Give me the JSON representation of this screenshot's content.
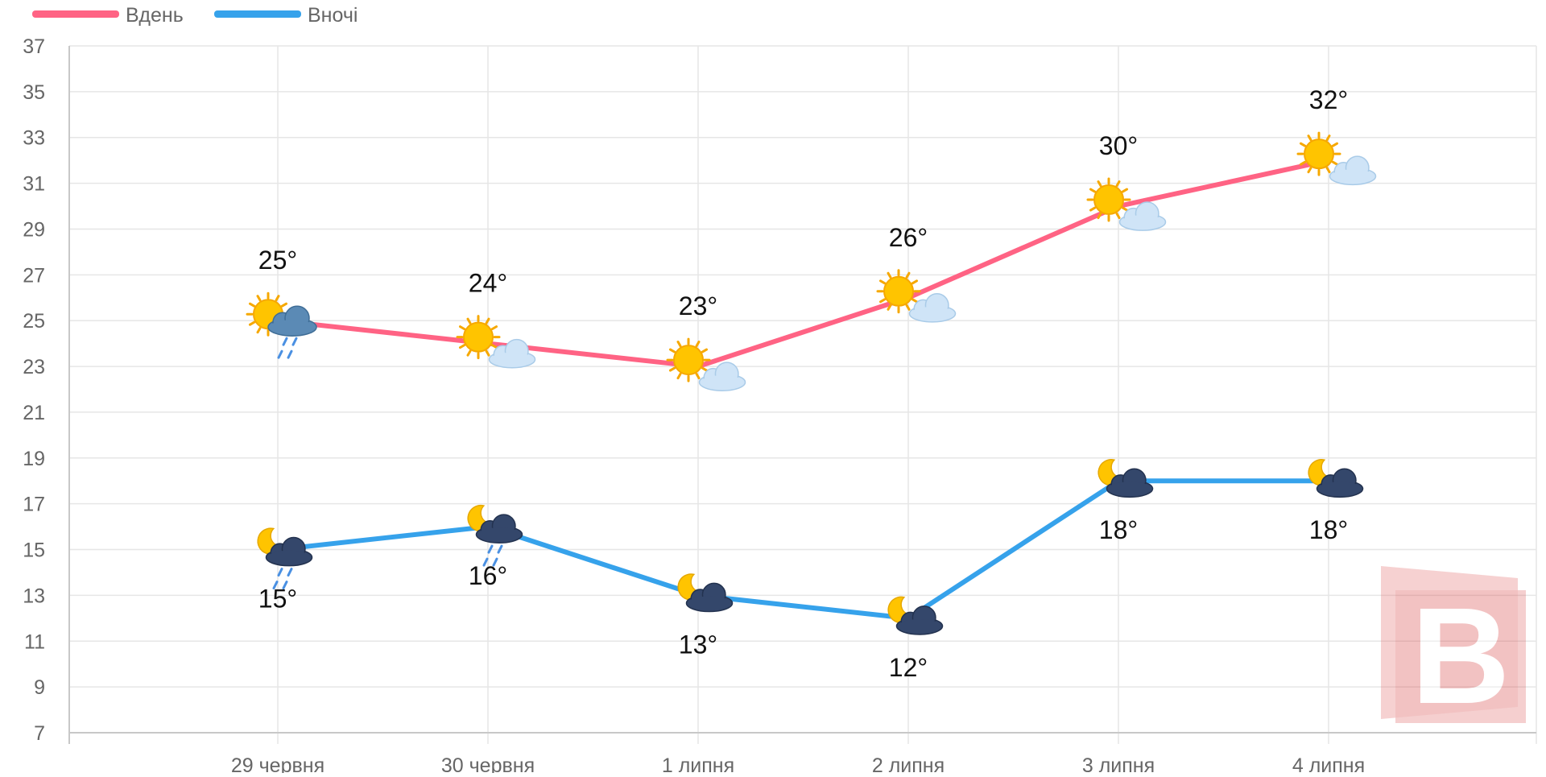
{
  "legend": {
    "items": [
      {
        "label": "Вдень",
        "color": "#ff6384"
      },
      {
        "label": "Вночі",
        "color": "#36a2eb"
      }
    ]
  },
  "chart_data": {
    "type": "line",
    "categories": [
      "29 червня",
      "30 червня",
      "1 липня",
      "2 липня",
      "3 липня",
      "4 липня"
    ],
    "series": [
      {
        "name": "Вдень",
        "color": "#ff6384",
        "values": [
          25,
          24,
          23,
          26,
          30,
          32
        ],
        "labels": [
          "25°",
          "24°",
          "23°",
          "26°",
          "30°",
          "32°"
        ],
        "icons": [
          "sun-cloud-rain-icon",
          "sun-cloud-icon",
          "sun-cloud-icon",
          "sun-cloud-icon",
          "sun-cloud-icon",
          "sun-cloud-icon"
        ]
      },
      {
        "name": "Вночі",
        "color": "#36a2eb",
        "values": [
          15,
          16,
          13,
          12,
          18,
          18
        ],
        "labels": [
          "15°",
          "16°",
          "13°",
          "12°",
          "18°",
          "18°"
        ],
        "icons": [
          "moon-cloud-rain-icon",
          "moon-cloud-rain-icon",
          "moon-cloud-icon",
          "moon-cloud-icon",
          "moon-cloud-icon",
          "moon-cloud-icon"
        ]
      }
    ],
    "y_ticks": [
      "37",
      "35",
      "33",
      "31",
      "29",
      "27",
      "25",
      "23",
      "21",
      "19",
      "17",
      "15",
      "13",
      "11",
      "9",
      "7"
    ],
    "ylim": [
      7,
      37
    ],
    "grid": true,
    "legend_position": "top-left",
    "watermark": {
      "letter": "B"
    }
  }
}
